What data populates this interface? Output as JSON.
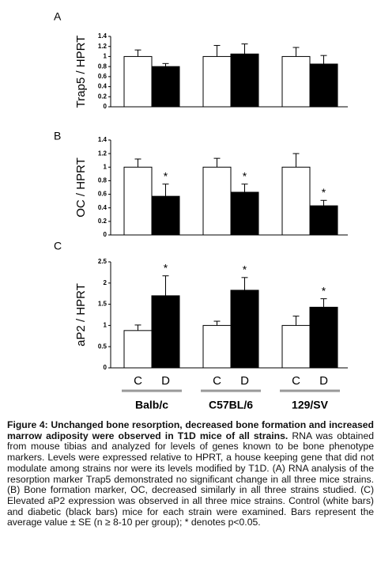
{
  "chart_data": [
    {
      "type": "bar",
      "panel": "A",
      "ylabel": "Trap5 / HPRT",
      "ylim": [
        0,
        1.4
      ],
      "yticks": [
        0,
        0.2,
        0.4,
        0.6,
        0.8,
        1,
        1.2,
        1.4
      ],
      "series": [
        {
          "name": "C",
          "color": "#ffffff",
          "values": [
            1.0,
            1.0,
            1.0
          ],
          "errors": [
            0.13,
            0.22,
            0.18
          ]
        },
        {
          "name": "D",
          "color": "#000000",
          "values": [
            0.8,
            1.05,
            0.85
          ],
          "errors": [
            0.06,
            0.2,
            0.17
          ]
        }
      ]
    },
    {
      "type": "bar",
      "panel": "B",
      "ylabel": "OC / HPRT",
      "ylim": [
        0,
        1.4
      ],
      "yticks": [
        0,
        0.2,
        0.4,
        0.6,
        0.8,
        1,
        1.2,
        1.4
      ],
      "series": [
        {
          "name": "C",
          "color": "#ffffff",
          "values": [
            1.0,
            1.0,
            1.0
          ],
          "errors": [
            0.12,
            0.13,
            0.2
          ]
        },
        {
          "name": "D",
          "color": "#000000",
          "values": [
            0.57,
            0.63,
            0.43
          ],
          "errors": [
            0.18,
            0.12,
            0.08
          ],
          "significance": [
            "*",
            "*",
            "*"
          ]
        }
      ]
    },
    {
      "type": "bar",
      "panel": "C",
      "ylabel": "aP2 / HPRT",
      "ylim": [
        0,
        2.5
      ],
      "yticks": [
        0,
        0.5,
        1,
        1.5,
        2,
        2.5
      ],
      "categories": [
        "Balb/c",
        "C57BL/6",
        "129/SV"
      ],
      "series": [
        {
          "name": "C",
          "color": "#ffffff",
          "values": [
            0.88,
            1.0,
            1.0
          ],
          "errors": [
            0.13,
            0.1,
            0.22
          ]
        },
        {
          "name": "D",
          "color": "#000000",
          "values": [
            1.7,
            1.83,
            1.43
          ],
          "errors": [
            0.47,
            0.3,
            0.2
          ],
          "significance": [
            "*",
            "*",
            "*"
          ]
        }
      ]
    }
  ],
  "caption": {
    "title": "Figure 4: Unchanged bone resorption, decreased bone formation and increased marrow adiposity were observed in T1D mice of all strains.",
    "text": "RNA was obtained from mouse tibias and analyzed for levels of genes known to be bone phenotype markers. Levels were expressed relative to HPRT, a house keeping gene that did not modulate among strains nor were its levels modified by T1D. (A) RNA analysis of the resorption marker Trap5 demonstrated no significant change in all three mice strains. (B) Bone formation marker, OC, decreased similarly in all three strains studied. (C) Elevated aP2 expression was observed in all three mice strains. Control (white bars) and diabetic (black bars) mice for each strain were examined. Bars represent the average value ± SE (n ≥ 8-10 per group); * denotes p<0.05."
  }
}
